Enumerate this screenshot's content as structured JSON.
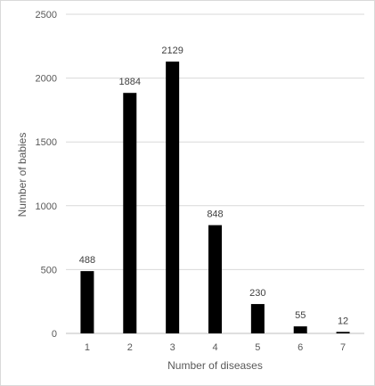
{
  "chart_data": {
    "type": "bar",
    "title": "",
    "xlabel": "Number of diseases",
    "ylabel": "Number of babies",
    "categories": [
      "1",
      "2",
      "3",
      "4",
      "5",
      "6",
      "7"
    ],
    "values": [
      488,
      1884,
      2129,
      848,
      230,
      55,
      12
    ],
    "data_labels": [
      "488",
      "1884",
      "2129",
      "848",
      "230",
      "55",
      "12"
    ],
    "ylim": [
      0,
      2500
    ],
    "yticks": [
      0,
      500,
      1000,
      1500,
      2000,
      2500
    ],
    "ytick_labels": [
      "0",
      "500",
      "1000",
      "1500",
      "2000",
      "2500"
    ],
    "grid": true,
    "legend": "none",
    "colors": {
      "bar": "#000000",
      "grid": "#d9d9d9",
      "axis": "#bfbfbf"
    }
  }
}
